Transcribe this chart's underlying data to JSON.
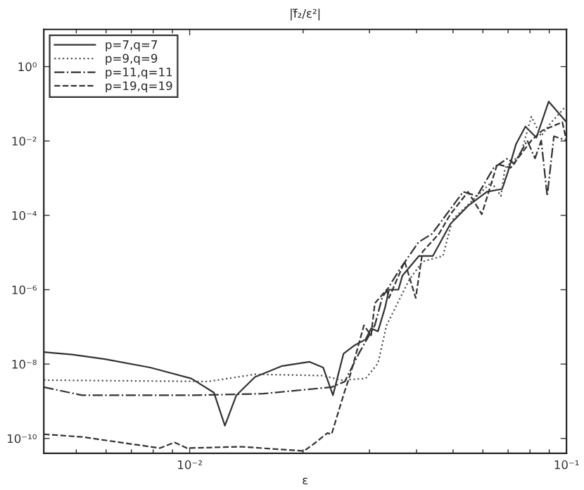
{
  "chart_data": {
    "type": "line",
    "title": "|f̃₂/ε²|",
    "xlabel": "ε",
    "log": "xy",
    "grid": false,
    "legend": "top left",
    "marker": "none",
    "xlim": [
      0.0041,
      0.1
    ],
    "ylim": [
      4e-11,
      10
    ],
    "xticks": [
      {
        "value": 0.01,
        "label": "10⁻²"
      },
      {
        "value": 0.1,
        "label": "10⁻¹"
      }
    ],
    "yticks": [
      {
        "value": 1e-10,
        "label": "10⁻¹⁰"
      },
      {
        "value": 1e-08,
        "label": "10⁻⁸"
      },
      {
        "value": 1e-06,
        "label": "10⁻⁶"
      },
      {
        "value": 0.0001,
        "label": "10⁻⁴"
      },
      {
        "value": 0.01,
        "label": "10⁻²"
      },
      {
        "value": 1,
        "label": "10⁰"
      }
    ],
    "series": [
      {
        "name": "p=7,q=7",
        "color": "#333333",
        "line_style": "solid",
        "x": [
          0.0041,
          0.00488,
          0.00596,
          0.00785,
          0.0101,
          0.0116,
          0.0124,
          0.0133,
          0.0149,
          0.0176,
          0.0208,
          0.0226,
          0.024,
          0.0256,
          0.0274,
          0.0293,
          0.0303,
          0.0316,
          0.033,
          0.0338,
          0.0358,
          0.0367,
          0.0406,
          0.0442,
          0.0492,
          0.0548,
          0.0615,
          0.0675,
          0.0698,
          0.0734,
          0.0778,
          0.0832,
          0.0897,
          0.1
        ],
        "values": [
          2.1e-08,
          1.8e-08,
          1.36e-08,
          8.1e-09,
          4.1e-09,
          1.7e-09,
          2.2e-10,
          1.45e-09,
          4.5e-09,
          8.9e-09,
          1.15e-08,
          8.1e-09,
          1.45e-09,
          1.9e-08,
          3.2e-08,
          4.6e-08,
          9.1e-08,
          7.6e-08,
          3.3e-07,
          1e-06,
          1e-06,
          2.4e-06,
          8.1e-06,
          8.1e-06,
          5.9e-05,
          0.00018,
          0.00043,
          0.00051,
          0.0014,
          0.008,
          0.0245,
          0.0123,
          0.115,
          0.032
        ]
      },
      {
        "name": "p=9,q=9",
        "color": "#555555",
        "line_style": "dotted",
        "x": [
          0.0041,
          0.0112,
          0.0149,
          0.0226,
          0.0252,
          0.0293,
          0.0316,
          0.0333,
          0.0383,
          0.0415,
          0.047,
          0.0498,
          0.0579,
          0.0632,
          0.067,
          0.0687,
          0.0756,
          0.0807,
          0.0856,
          0.0912,
          0.1
        ],
        "values": [
          3.7e-09,
          3.4e-09,
          5.3e-09,
          4.9e-09,
          3.7e-09,
          4.1e-09,
          1.05e-08,
          1.1e-07,
          1.9e-06,
          5.7e-06,
          8.1e-06,
          7.6e-05,
          0.00033,
          0.00078,
          0.00033,
          0.0019,
          0.0044,
          0.045,
          0.0134,
          0.032,
          0.089
        ]
      },
      {
        "name": "p=11,q=11",
        "color": "#333333",
        "line_style": "dashdot",
        "x": [
          0.0041,
          0.00518,
          0.0103,
          0.0157,
          0.0238,
          0.0258,
          0.0281,
          0.031,
          0.0324,
          0.036,
          0.0405,
          0.044,
          0.0532,
          0.0579,
          0.0641,
          0.0698,
          0.0726,
          0.0787,
          0.0825,
          0.0857,
          0.0889,
          0.0926,
          0.1
        ],
        "values": [
          2.4e-09,
          1.45e-09,
          1.45e-09,
          1.6e-09,
          2.4e-09,
          3.4e-09,
          1.9e-08,
          1.1e-07,
          6e-07,
          3.4e-06,
          1.9e-05,
          3.2e-05,
          0.00043,
          0.00033,
          0.0019,
          0.0034,
          0.0024,
          0.0103,
          0.0034,
          0.0103,
          0.00033,
          0.0134,
          0.0103
        ]
      },
      {
        "name": "p=19,q=19",
        "color": "#333333",
        "line_style": "dashed",
        "x": [
          0.0041,
          0.00518,
          0.00833,
          0.00912,
          0.00983,
          0.0137,
          0.0201,
          0.0213,
          0.0232,
          0.0238,
          0.0258,
          0.0267,
          0.029,
          0.0303,
          0.031,
          0.0333,
          0.0338,
          0.0372,
          0.0398,
          0.0415,
          0.0459,
          0.0492,
          0.0548,
          0.0596,
          0.0655,
          0.0711,
          0.0807,
          0.0862,
          0.0975,
          0.1
        ],
        "values": [
          1.3e-10,
          1.1e-10,
          5.5e-11,
          7.8e-11,
          5.5e-11,
          6e-11,
          4.6e-11,
          7e-11,
          1.4e-10,
          1.3e-10,
          1.9e-09,
          5.3e-09,
          1.1e-07,
          5.9e-08,
          4.3e-07,
          1e-06,
          6e-07,
          5.7e-06,
          6e-07,
          1.05e-05,
          3.2e-05,
          0.000107,
          0.00043,
          0.000107,
          0.0024,
          0.0019,
          0.0103,
          0.019,
          0.032,
          0.0103
        ]
      }
    ]
  }
}
